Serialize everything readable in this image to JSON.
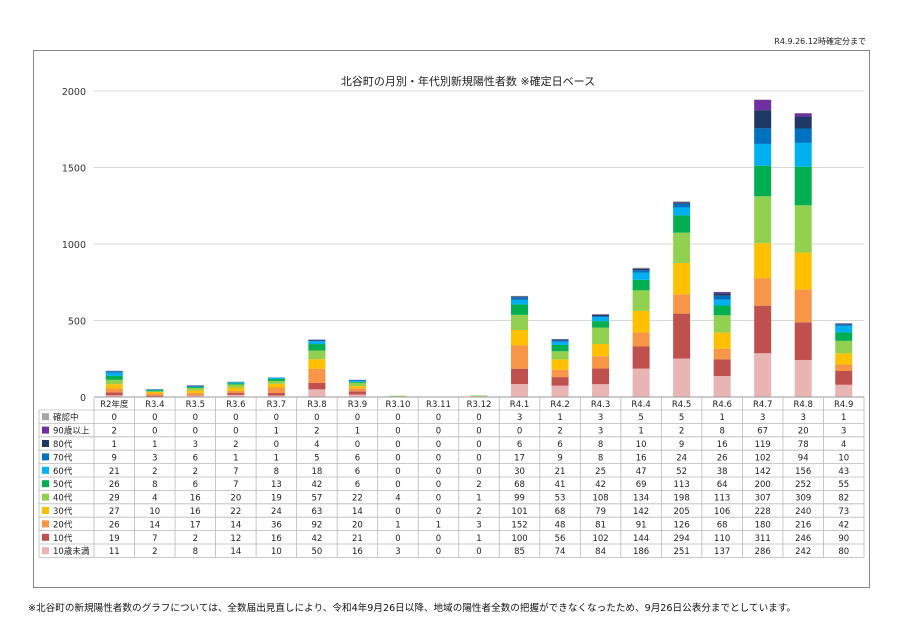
{
  "header_note": "R4.9.26.12時確定分まで",
  "footnote": "※北谷町の新規陽性者数のグラフについては、全数届出見直しにより、令和4年9月26日以降、地域の陽性者全数の把握ができなくなったため、9月26日公表分までとしています。",
  "chart_data": {
    "type": "bar",
    "stacked": true,
    "title": "北谷町の月別・年代別新規陽性者数 ※確定日ベース",
    "xlabel": "",
    "ylabel": "",
    "ylim": [
      0,
      2000
    ],
    "yticks": [
      0,
      500,
      1000,
      1500,
      2000
    ],
    "grid": true,
    "legend": "data-table",
    "categories": [
      "R2年度",
      "R3.4",
      "R3.5",
      "R3.6",
      "R3.7",
      "R3.8",
      "R3.9",
      "R3.10",
      "R3.11",
      "R3.12",
      "R4.1",
      "R4.2",
      "R4.3",
      "R4.4",
      "R4.5",
      "R4.6",
      "R4.7",
      "R4.8",
      "R4.9"
    ],
    "series": [
      {
        "name": "10歳未満",
        "color": "#e8b4b4",
        "values": [
          11,
          2,
          8,
          14,
          10,
          50,
          16,
          3,
          0,
          0,
          85,
          74,
          84,
          186,
          251,
          137,
          286,
          242,
          80
        ]
      },
      {
        "name": "10代",
        "color": "#c0504d",
        "values": [
          19,
          7,
          2,
          12,
          16,
          42,
          21,
          0,
          0,
          1,
          100,
          56,
          102,
          144,
          294,
          110,
          311,
          246,
          90
        ]
      },
      {
        "name": "20代",
        "color": "#f79646",
        "values": [
          26,
          14,
          17,
          14,
          36,
          92,
          20,
          1,
          1,
          3,
          152,
          48,
          81,
          91,
          126,
          68,
          180,
          216,
          42
        ]
      },
      {
        "name": "30代",
        "color": "#ffc000",
        "values": [
          27,
          10,
          16,
          22,
          24,
          63,
          14,
          0,
          0,
          2,
          101,
          68,
          79,
          142,
          205,
          106,
          228,
          240,
          73
        ]
      },
      {
        "name": "40代",
        "color": "#92d050",
        "values": [
          29,
          4,
          16,
          20,
          19,
          57,
          22,
          4,
          0,
          1,
          99,
          53,
          108,
          134,
          198,
          113,
          307,
          309,
          82
        ]
      },
      {
        "name": "50代",
        "color": "#00b050",
        "values": [
          26,
          8,
          6,
          7,
          13,
          42,
          6,
          0,
          0,
          2,
          68,
          41,
          42,
          69,
          113,
          64,
          200,
          252,
          55
        ]
      },
      {
        "name": "60代",
        "color": "#00b0f0",
        "values": [
          21,
          2,
          2,
          7,
          8,
          18,
          6,
          0,
          0,
          0,
          30,
          21,
          25,
          47,
          52,
          38,
          142,
          156,
          43
        ]
      },
      {
        "name": "70代",
        "color": "#0070c0",
        "values": [
          9,
          3,
          6,
          1,
          1,
          5,
          6,
          0,
          0,
          0,
          17,
          9,
          8,
          16,
          24,
          26,
          102,
          94,
          10
        ]
      },
      {
        "name": "80代",
        "color": "#1f3864",
        "values": [
          1,
          1,
          3,
          2,
          0,
          4,
          0,
          0,
          0,
          0,
          6,
          6,
          8,
          10,
          9,
          16,
          119,
          78,
          4
        ]
      },
      {
        "name": "90歳以上",
        "color": "#7030a0",
        "values": [
          2,
          0,
          0,
          0,
          1,
          2,
          1,
          0,
          0,
          0,
          0,
          2,
          3,
          1,
          2,
          8,
          67,
          20,
          3
        ]
      },
      {
        "name": "確認中",
        "color": "#a6a6a6",
        "values": [
          0,
          0,
          0,
          0,
          0,
          0,
          0,
          0,
          0,
          0,
          3,
          1,
          3,
          5,
          5,
          1,
          3,
          3,
          1
        ]
      }
    ]
  }
}
